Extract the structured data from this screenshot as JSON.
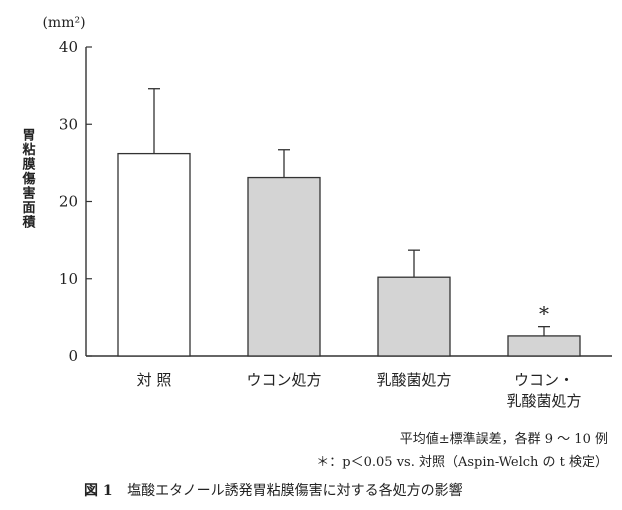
{
  "chart_data": {
    "type": "bar",
    "unit_label": "(mm²)",
    "ylabel": "胃粘膜傷害面積",
    "ylim": [
      0,
      40
    ],
    "yticks": [
      0,
      10,
      20,
      30,
      40
    ],
    "categories": [
      [
        "対 照"
      ],
      [
        "ウコン処方"
      ],
      [
        "乳酸菌処方"
      ],
      [
        "ウコン・",
        "乳酸菌処方"
      ]
    ],
    "values": [
      26.2,
      23.1,
      10.2,
      2.6
    ],
    "errors": [
      8.4,
      3.6,
      3.5,
      1.2
    ],
    "significance": [
      "",
      "",
      "",
      "*"
    ],
    "bar_colors": [
      "#ffffff",
      "#d4d4d4",
      "#d4d4d4",
      "#d4d4d4"
    ],
    "grid": false
  },
  "notes": {
    "line1": "平均値±標準誤差，各群 9 ～ 10 例",
    "line2": "＊：p＜0.05 vs. 対照（Aspin-Welch の t 検定）"
  },
  "caption": {
    "label": "図 1",
    "text": "塩酸エタノール誘発胃粘膜傷害に対する各処方の影響"
  }
}
